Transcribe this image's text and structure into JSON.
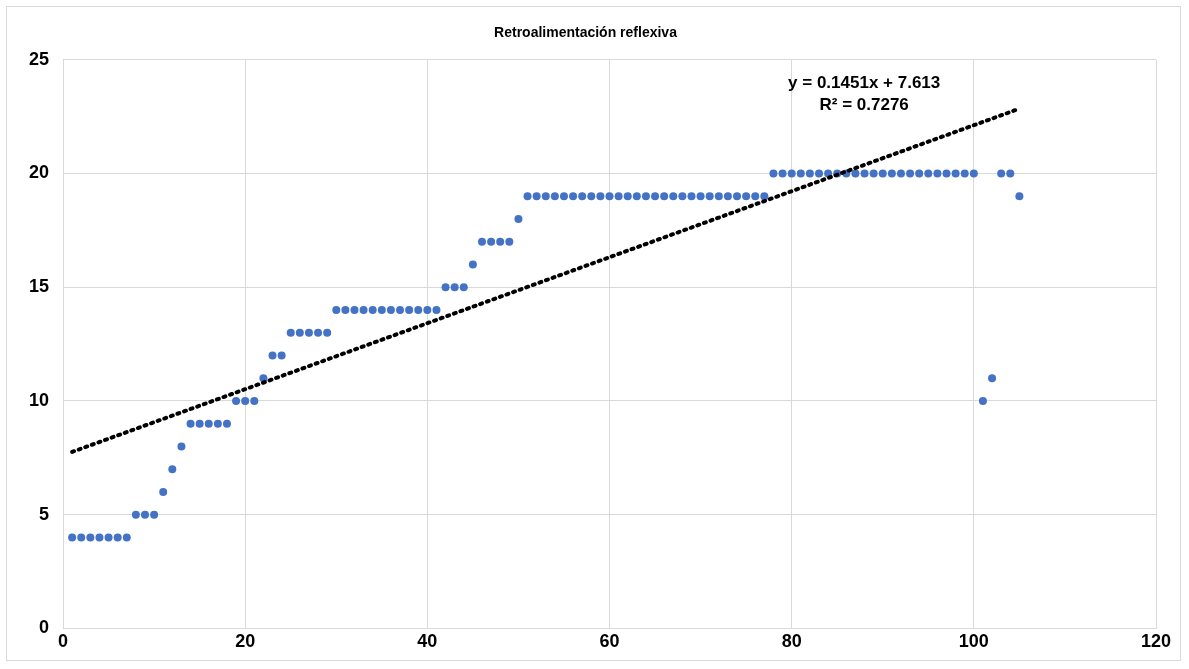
{
  "chart_data": {
    "type": "scatter",
    "title": "Retroalimentación reflexiva",
    "x": [
      1,
      2,
      3,
      4,
      5,
      6,
      7,
      8,
      9,
      10,
      11,
      12,
      13,
      14,
      15,
      16,
      17,
      18,
      19,
      20,
      21,
      22,
      23,
      24,
      25,
      26,
      27,
      28,
      29,
      30,
      31,
      32,
      33,
      34,
      35,
      36,
      37,
      38,
      39,
      40,
      41,
      42,
      43,
      44,
      45,
      46,
      47,
      48,
      49,
      50,
      51,
      52,
      53,
      54,
      55,
      56,
      57,
      58,
      59,
      60,
      61,
      62,
      63,
      64,
      65,
      66,
      67,
      68,
      69,
      70,
      71,
      72,
      73,
      74,
      75,
      76,
      77,
      78,
      79,
      80,
      81,
      82,
      83,
      84,
      85,
      86,
      87,
      88,
      89,
      90,
      91,
      92,
      93,
      94,
      95,
      96,
      97,
      98,
      99,
      100,
      101,
      102,
      103,
      104,
      105
    ],
    "series": [
      {
        "color": "#4472c4",
        "marker": "circle",
        "values": [
          4,
          4,
          4,
          4,
          4,
          4,
          4,
          5,
          5,
          5,
          6,
          7,
          8,
          9,
          9,
          9,
          9,
          9,
          10,
          10,
          10,
          11,
          12,
          12,
          13,
          13,
          13,
          13,
          13,
          14,
          14,
          14,
          14,
          14,
          14,
          14,
          14,
          14,
          14,
          14,
          14,
          15,
          15,
          15,
          16,
          17,
          17,
          17,
          17,
          18,
          19,
          19,
          19,
          19,
          19,
          19,
          19,
          19,
          19,
          19,
          19,
          19,
          19,
          19,
          19,
          19,
          19,
          19,
          19,
          19,
          19,
          19,
          19,
          19,
          19,
          19,
          19,
          20,
          20,
          20,
          20,
          20,
          20,
          20,
          20,
          20,
          20,
          20,
          20,
          20,
          20,
          20,
          20,
          20,
          20,
          20,
          20,
          20,
          20,
          20,
          10,
          11,
          20,
          20,
          19
        ]
      },
      {
        "type": "line",
        "color": "#000000",
        "line_style": "dotted",
        "marker": "none",
        "x": [
          1,
          105
        ],
        "values": [
          7.76,
          22.85
        ]
      }
    ],
    "xlim": [
      0,
      120
    ],
    "xticks": [
      0,
      20,
      40,
      60,
      80,
      100,
      120
    ],
    "ylim": [
      0,
      25
    ],
    "yticks": [
      0,
      5,
      10,
      15,
      20,
      25
    ],
    "grid": true,
    "legend": false,
    "annotations": [
      "y = 0.1451x + 7.613",
      "R² = 0.7276"
    ]
  }
}
